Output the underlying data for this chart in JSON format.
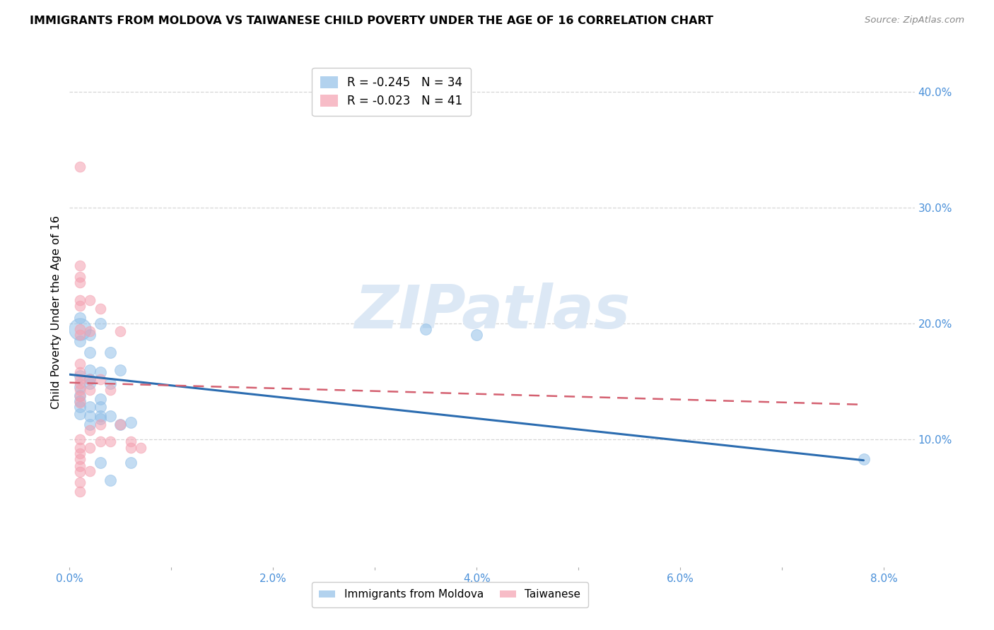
{
  "title": "IMMIGRANTS FROM MOLDOVA VS TAIWANESE CHILD POVERTY UNDER THE AGE OF 16 CORRELATION CHART",
  "source": "Source: ZipAtlas.com",
  "xlabel_blue": "Immigrants from Moldova",
  "xlabel_pink": "Taiwanese",
  "ylabel": "Child Poverty Under the Age of 16",
  "xlim": [
    0.0,
    0.083
  ],
  "ylim": [
    -0.01,
    0.43
  ],
  "yticks_right": [
    0.1,
    0.2,
    0.3,
    0.4
  ],
  "ytick_right_labels": [
    "10.0%",
    "20.0%",
    "30.0%",
    "40.0%"
  ],
  "xticks": [
    0.0,
    0.01,
    0.02,
    0.03,
    0.04,
    0.05,
    0.06,
    0.07,
    0.08
  ],
  "xtick_labels": [
    "0.0%",
    "",
    "2.0%",
    "",
    "4.0%",
    "",
    "6.0%",
    "",
    "8.0%"
  ],
  "legend_blue_r": "R = -0.245",
  "legend_blue_n": "N = 34",
  "legend_pink_r": "R = -0.023",
  "legend_pink_n": "N = 41",
  "blue_color": "#92c0e8",
  "pink_color": "#f4a0b0",
  "blue_line_color": "#2b6cb0",
  "pink_line_color": "#d46070",
  "watermark_color": "#dce8f5",
  "grid_color": "#cccccc",
  "axis_label_color": "#4a90d9",
  "blue_scatter_large": [
    [
      0.001,
      0.195,
      500
    ]
  ],
  "blue_scatter": [
    [
      0.001,
      0.205
    ],
    [
      0.001,
      0.185
    ],
    [
      0.001,
      0.155
    ],
    [
      0.001,
      0.145
    ],
    [
      0.001,
      0.138
    ],
    [
      0.001,
      0.133
    ],
    [
      0.001,
      0.128
    ],
    [
      0.001,
      0.122
    ],
    [
      0.002,
      0.19
    ],
    [
      0.002,
      0.175
    ],
    [
      0.002,
      0.16
    ],
    [
      0.002,
      0.152
    ],
    [
      0.002,
      0.148
    ],
    [
      0.002,
      0.128
    ],
    [
      0.002,
      0.12
    ],
    [
      0.002,
      0.113
    ],
    [
      0.003,
      0.2
    ],
    [
      0.003,
      0.158
    ],
    [
      0.003,
      0.135
    ],
    [
      0.003,
      0.128
    ],
    [
      0.003,
      0.12
    ],
    [
      0.003,
      0.118
    ],
    [
      0.003,
      0.08
    ],
    [
      0.004,
      0.175
    ],
    [
      0.004,
      0.148
    ],
    [
      0.004,
      0.12
    ],
    [
      0.004,
      0.065
    ],
    [
      0.005,
      0.16
    ],
    [
      0.005,
      0.113
    ],
    [
      0.006,
      0.115
    ],
    [
      0.006,
      0.08
    ],
    [
      0.035,
      0.195
    ],
    [
      0.04,
      0.19
    ],
    [
      0.078,
      0.083
    ]
  ],
  "pink_scatter": [
    [
      0.001,
      0.335
    ],
    [
      0.001,
      0.25
    ],
    [
      0.001,
      0.24
    ],
    [
      0.001,
      0.235
    ],
    [
      0.001,
      0.22
    ],
    [
      0.001,
      0.215
    ],
    [
      0.001,
      0.195
    ],
    [
      0.001,
      0.19
    ],
    [
      0.001,
      0.165
    ],
    [
      0.001,
      0.158
    ],
    [
      0.001,
      0.152
    ],
    [
      0.001,
      0.148
    ],
    [
      0.001,
      0.143
    ],
    [
      0.001,
      0.137
    ],
    [
      0.001,
      0.132
    ],
    [
      0.001,
      0.1
    ],
    [
      0.001,
      0.093
    ],
    [
      0.001,
      0.088
    ],
    [
      0.001,
      0.083
    ],
    [
      0.001,
      0.077
    ],
    [
      0.001,
      0.072
    ],
    [
      0.001,
      0.063
    ],
    [
      0.001,
      0.055
    ],
    [
      0.002,
      0.22
    ],
    [
      0.002,
      0.193
    ],
    [
      0.002,
      0.152
    ],
    [
      0.002,
      0.143
    ],
    [
      0.002,
      0.108
    ],
    [
      0.002,
      0.093
    ],
    [
      0.002,
      0.073
    ],
    [
      0.003,
      0.213
    ],
    [
      0.003,
      0.152
    ],
    [
      0.003,
      0.113
    ],
    [
      0.003,
      0.098
    ],
    [
      0.004,
      0.143
    ],
    [
      0.004,
      0.098
    ],
    [
      0.005,
      0.193
    ],
    [
      0.005,
      0.113
    ],
    [
      0.006,
      0.098
    ],
    [
      0.006,
      0.093
    ],
    [
      0.007,
      0.093
    ]
  ],
  "blue_line": [
    [
      0.0,
      0.156
    ],
    [
      0.078,
      0.082
    ]
  ],
  "pink_line": [
    [
      0.0,
      0.149
    ],
    [
      0.078,
      0.13
    ]
  ]
}
